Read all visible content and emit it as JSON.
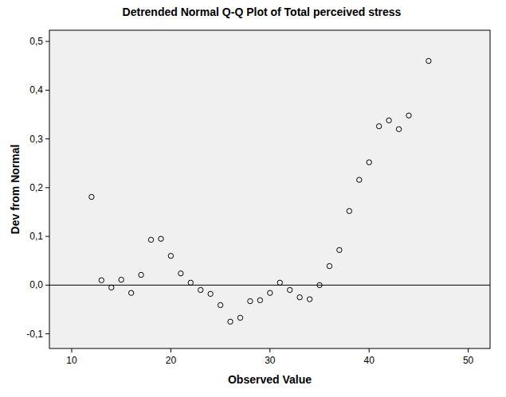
{
  "chart_data": {
    "type": "scatter",
    "title": "Detrended Normal Q-Q Plot of Total perceived stress",
    "x_label": "Observed Value",
    "y_label": "Dev from Normal",
    "x": [
      12,
      13,
      14,
      15,
      16,
      17,
      18,
      19,
      20,
      21,
      22,
      23,
      24,
      25,
      26,
      27,
      28,
      29,
      30,
      31,
      32,
      33,
      34,
      35,
      36,
      37,
      38,
      39,
      40,
      41,
      42,
      43,
      44,
      46
    ],
    "values": [
      0.181,
      0.01,
      -0.005,
      0.011,
      -0.016,
      0.021,
      0.093,
      0.095,
      0.06,
      0.024,
      0.005,
      -0.01,
      -0.018,
      -0.041,
      -0.075,
      -0.067,
      -0.033,
      -0.031,
      -0.016,
      0.005,
      -0.01,
      -0.025,
      -0.029,
      0.0,
      0.039,
      0.072,
      0.152,
      0.216,
      0.252,
      0.326,
      0.338,
      0.32,
      0.348,
      0.46
    ],
    "reference_y": 0,
    "color": "#000000",
    "marker": "circle-open",
    "xlim": [
      7.75,
      52.2
    ],
    "ylim": [
      -0.13,
      0.523
    ],
    "xticks": [
      10,
      20,
      30,
      40,
      50
    ],
    "yticks": [
      {
        "value": -0.1,
        "label": "-0,1"
      },
      {
        "value": 0,
        "label": "0,0"
      },
      {
        "value": 0.1,
        "label": "0,1"
      },
      {
        "value": 0.2,
        "label": "0,2"
      },
      {
        "value": 0.3,
        "label": "0,3"
      },
      {
        "value": 0.4,
        "label": "0,4"
      },
      {
        "value": 0.5,
        "label": "0,5"
      }
    ],
    "grid": false
  }
}
